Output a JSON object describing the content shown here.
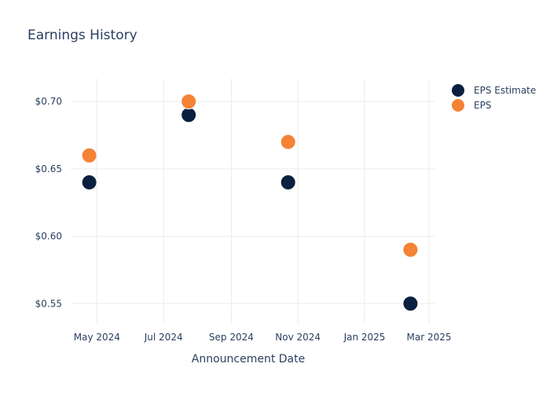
{
  "chart_data": {
    "type": "scatter",
    "title": "Earnings History",
    "xlabel": "Announcement Date",
    "ylabel": "",
    "x_ticks": [
      {
        "date": "2024-05-01",
        "label": "May 2024"
      },
      {
        "date": "2024-07-01",
        "label": "Jul 2024"
      },
      {
        "date": "2024-09-01",
        "label": "Sep 2024"
      },
      {
        "date": "2024-11-01",
        "label": "Nov 2024"
      },
      {
        "date": "2025-01-01",
        "label": "Jan 2025"
      },
      {
        "date": "2025-03-01",
        "label": "Mar 2025"
      }
    ],
    "y_ticks": [
      {
        "value": 0.55,
        "label": "$0.55"
      },
      {
        "value": 0.6,
        "label": "$0.60"
      },
      {
        "value": 0.65,
        "label": "$0.65"
      },
      {
        "value": 0.7,
        "label": "$0.70"
      }
    ],
    "xlim": [
      "2024-04-07",
      "2025-03-06"
    ],
    "ylim": [
      0.535,
      0.717
    ],
    "grid": true,
    "legend_position": "top-right",
    "series": [
      {
        "name": "EPS Estimate",
        "color": "#0b1f3f",
        "points": [
          {
            "x": "2024-04-24",
            "y": 0.64
          },
          {
            "x": "2024-07-24",
            "y": 0.69
          },
          {
            "x": "2024-10-23",
            "y": 0.64
          },
          {
            "x": "2025-02-12",
            "y": 0.55
          }
        ]
      },
      {
        "name": "EPS",
        "color": "#f58235",
        "points": [
          {
            "x": "2024-04-24",
            "y": 0.66
          },
          {
            "x": "2024-07-24",
            "y": 0.7
          },
          {
            "x": "2024-10-23",
            "y": 0.67
          },
          {
            "x": "2025-02-12",
            "y": 0.59
          }
        ]
      }
    ]
  }
}
